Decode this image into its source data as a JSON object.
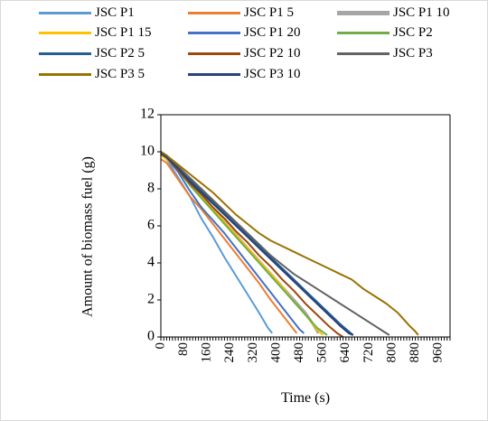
{
  "chart_data": {
    "type": "line",
    "title": "",
    "xlabel": "Time (s)",
    "ylabel": "Amount of biomass fuel (g)",
    "xlim": [
      0,
      1000
    ],
    "ylim": [
      0,
      12
    ],
    "x_ticks": [
      0,
      80,
      160,
      240,
      320,
      400,
      480,
      560,
      640,
      720,
      800,
      880,
      960
    ],
    "y_ticks": [
      0,
      2,
      4,
      6,
      8,
      10,
      12
    ],
    "grid": false,
    "legend_position": "top",
    "series": [
      {
        "name": "JSC P1",
        "color": "#5b9bd5",
        "x": [
          0,
          20,
          60,
          100,
          140,
          180,
          220,
          260,
          300,
          340,
          370,
          385
        ],
        "y": [
          10.0,
          9.6,
          8.6,
          7.6,
          6.4,
          5.4,
          4.3,
          3.3,
          2.3,
          1.3,
          0.5,
          0.2
        ]
      },
      {
        "name": "JSC P1 5",
        "color": "#ed7d31",
        "x": [
          0,
          20,
          60,
          100,
          140,
          180,
          220,
          260,
          300,
          340,
          380,
          420,
          450,
          470
        ],
        "y": [
          9.6,
          9.4,
          8.5,
          7.6,
          6.9,
          6.1,
          5.3,
          4.5,
          3.7,
          2.9,
          2.0,
          1.2,
          0.6,
          0.2
        ]
      },
      {
        "name": "JSC P1 10",
        "color": "#a5a5a5",
        "x": [
          0,
          20,
          60,
          100,
          140,
          180,
          220,
          260,
          300,
          340,
          380,
          420,
          460,
          500,
          530,
          545
        ],
        "y": [
          9.9,
          9.6,
          9.0,
          8.3,
          7.6,
          6.9,
          6.2,
          5.5,
          4.8,
          4.1,
          3.4,
          2.7,
          2.0,
          1.3,
          0.6,
          0.2
        ]
      },
      {
        "name": "JSC P1 15",
        "color": "#ffc000",
        "x": [
          0,
          20,
          60,
          100,
          140,
          180,
          220,
          260,
          300,
          340,
          380,
          420,
          460,
          500,
          540,
          560
        ],
        "y": [
          9.8,
          9.6,
          9.0,
          8.3,
          7.6,
          6.9,
          6.2,
          5.5,
          4.8,
          4.1,
          3.4,
          2.7,
          1.9,
          1.2,
          0.4,
          0.1
        ]
      },
      {
        "name": "JSC P1 20",
        "color": "#4472c4",
        "x": [
          0,
          20,
          60,
          100,
          140,
          180,
          220,
          260,
          300,
          340,
          380,
          420,
          460,
          480,
          495
        ],
        "y": [
          9.9,
          9.7,
          8.9,
          7.9,
          7.0,
          6.3,
          5.6,
          4.8,
          4.0,
          3.2,
          2.4,
          1.6,
          0.8,
          0.4,
          0.2
        ]
      },
      {
        "name": "JSC P2",
        "color": "#70ad47",
        "x": [
          0,
          20,
          60,
          100,
          140,
          180,
          220,
          260,
          300,
          340,
          380,
          420,
          460,
          500,
          540,
          575
        ],
        "y": [
          10.0,
          9.7,
          9.0,
          8.2,
          7.5,
          6.8,
          6.1,
          5.4,
          4.7,
          4.0,
          3.3,
          2.6,
          1.9,
          1.2,
          0.5,
          0.1
        ]
      },
      {
        "name": "JSC P2 5",
        "color": "#255e91",
        "x": [
          0,
          20,
          60,
          100,
          140,
          180,
          220,
          260,
          300,
          340,
          380,
          420,
          460,
          500,
          540,
          580,
          620,
          650,
          665
        ],
        "y": [
          10.0,
          9.8,
          9.2,
          8.5,
          7.9,
          7.3,
          6.7,
          6.1,
          5.5,
          4.9,
          4.3,
          3.7,
          3.1,
          2.5,
          1.9,
          1.3,
          0.7,
          0.3,
          0.1
        ]
      },
      {
        "name": "JSC P2 10",
        "color": "#9e480e",
        "x": [
          0,
          20,
          60,
          100,
          140,
          180,
          220,
          260,
          300,
          340,
          380,
          420,
          460,
          500,
          540,
          580,
          610,
          630
        ],
        "y": [
          9.9,
          9.7,
          9.0,
          8.3,
          7.7,
          7.0,
          6.4,
          5.7,
          5.1,
          4.4,
          3.8,
          3.1,
          2.5,
          1.8,
          1.2,
          0.6,
          0.2,
          0.0
        ]
      },
      {
        "name": "JSC P3",
        "color": "#636363",
        "x": [
          0,
          20,
          60,
          100,
          140,
          180,
          220,
          260,
          300,
          340,
          380,
          420,
          460,
          500,
          540,
          580,
          620,
          660,
          700,
          740,
          770,
          790
        ],
        "y": [
          10.0,
          9.8,
          9.2,
          8.6,
          8.0,
          7.4,
          6.8,
          6.2,
          5.6,
          5.0,
          4.4,
          3.9,
          3.4,
          3.0,
          2.6,
          2.2,
          1.8,
          1.4,
          1.0,
          0.6,
          0.3,
          0.1
        ]
      },
      {
        "name": "JSC P3 5",
        "color": "#997300",
        "x": [
          0,
          20,
          60,
          100,
          140,
          180,
          220,
          260,
          300,
          340,
          380,
          420,
          460,
          500,
          540,
          580,
          620,
          660,
          700,
          740,
          780,
          820,
          860,
          880,
          890
        ],
        "y": [
          10.0,
          9.8,
          9.3,
          8.8,
          8.3,
          7.8,
          7.2,
          6.6,
          6.1,
          5.6,
          5.2,
          4.9,
          4.6,
          4.3,
          4.0,
          3.7,
          3.4,
          3.1,
          2.6,
          2.2,
          1.8,
          1.3,
          0.6,
          0.3,
          0.1
        ]
      },
      {
        "name": "JSC P3 10",
        "color": "#264478",
        "x": [
          0,
          20,
          60,
          100,
          140,
          180,
          220,
          260,
          300,
          340,
          380,
          420,
          460,
          500,
          540,
          580,
          620,
          650,
          665
        ],
        "y": [
          9.9,
          9.7,
          9.1,
          8.4,
          7.8,
          7.2,
          6.6,
          6.0,
          5.4,
          4.8,
          4.2,
          3.6,
          3.0,
          2.4,
          1.8,
          1.2,
          0.6,
          0.2,
          0.1
        ]
      }
    ]
  }
}
